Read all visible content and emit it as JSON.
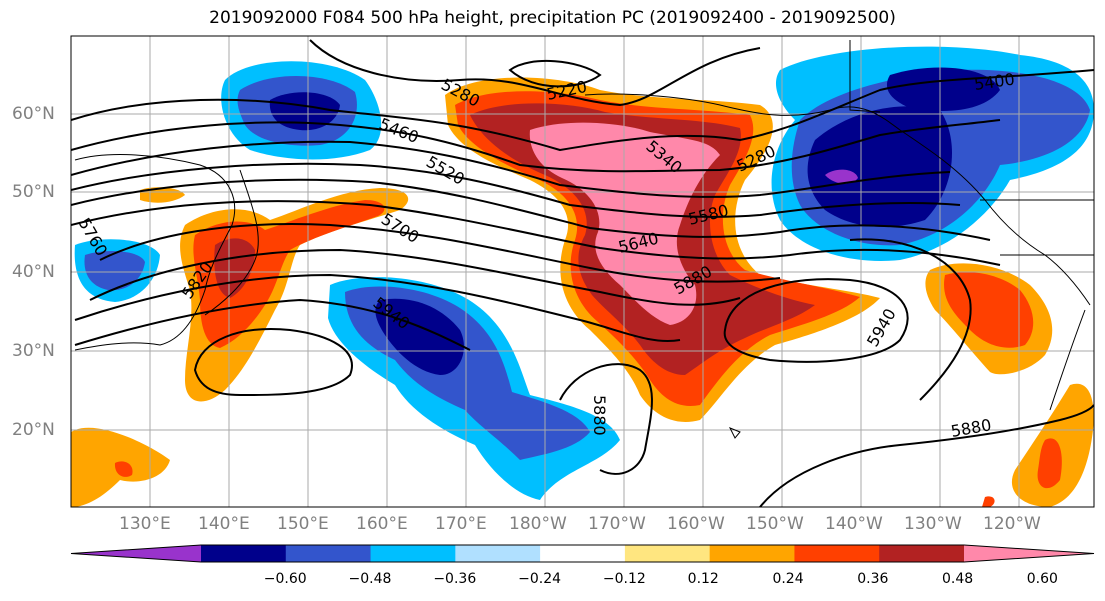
{
  "title": "2019092000 F084 500 hPa height, precipitation PC (2019092400 - 2019092500)",
  "lat_labels": [
    "60°N",
    "50°N",
    "40°N",
    "30°N",
    "20°N"
  ],
  "lon_labels": [
    "130°E",
    "140°E",
    "150°E",
    "160°E",
    "170°E",
    "180°W",
    "170°W",
    "160°W",
    "150°W",
    "140°W",
    "130°W",
    "120°W"
  ],
  "contour_labels": [
    "5220",
    "5280",
    "5400",
    "5460",
    "5340",
    "5280",
    "5520",
    "5580",
    "5640",
    "5700",
    "5760",
    "5820",
    "5880",
    "5940",
    "5940",
    "5880",
    "5880"
  ],
  "colorbar": {
    "tick_labels": [
      "−0.60",
      "−0.48",
      "−0.36",
      "−0.24",
      "−0.12",
      "0.12",
      "0.24",
      "0.36",
      "0.48",
      "0.60"
    ],
    "colors": [
      "#9933cc",
      "#00008b",
      "#3355cc",
      "#00bfff",
      "#b0e0ff",
      "#ffffff",
      "#ffe680",
      "#ffa500",
      "#ff4000",
      "#b22222",
      "#ff88aa"
    ]
  }
}
